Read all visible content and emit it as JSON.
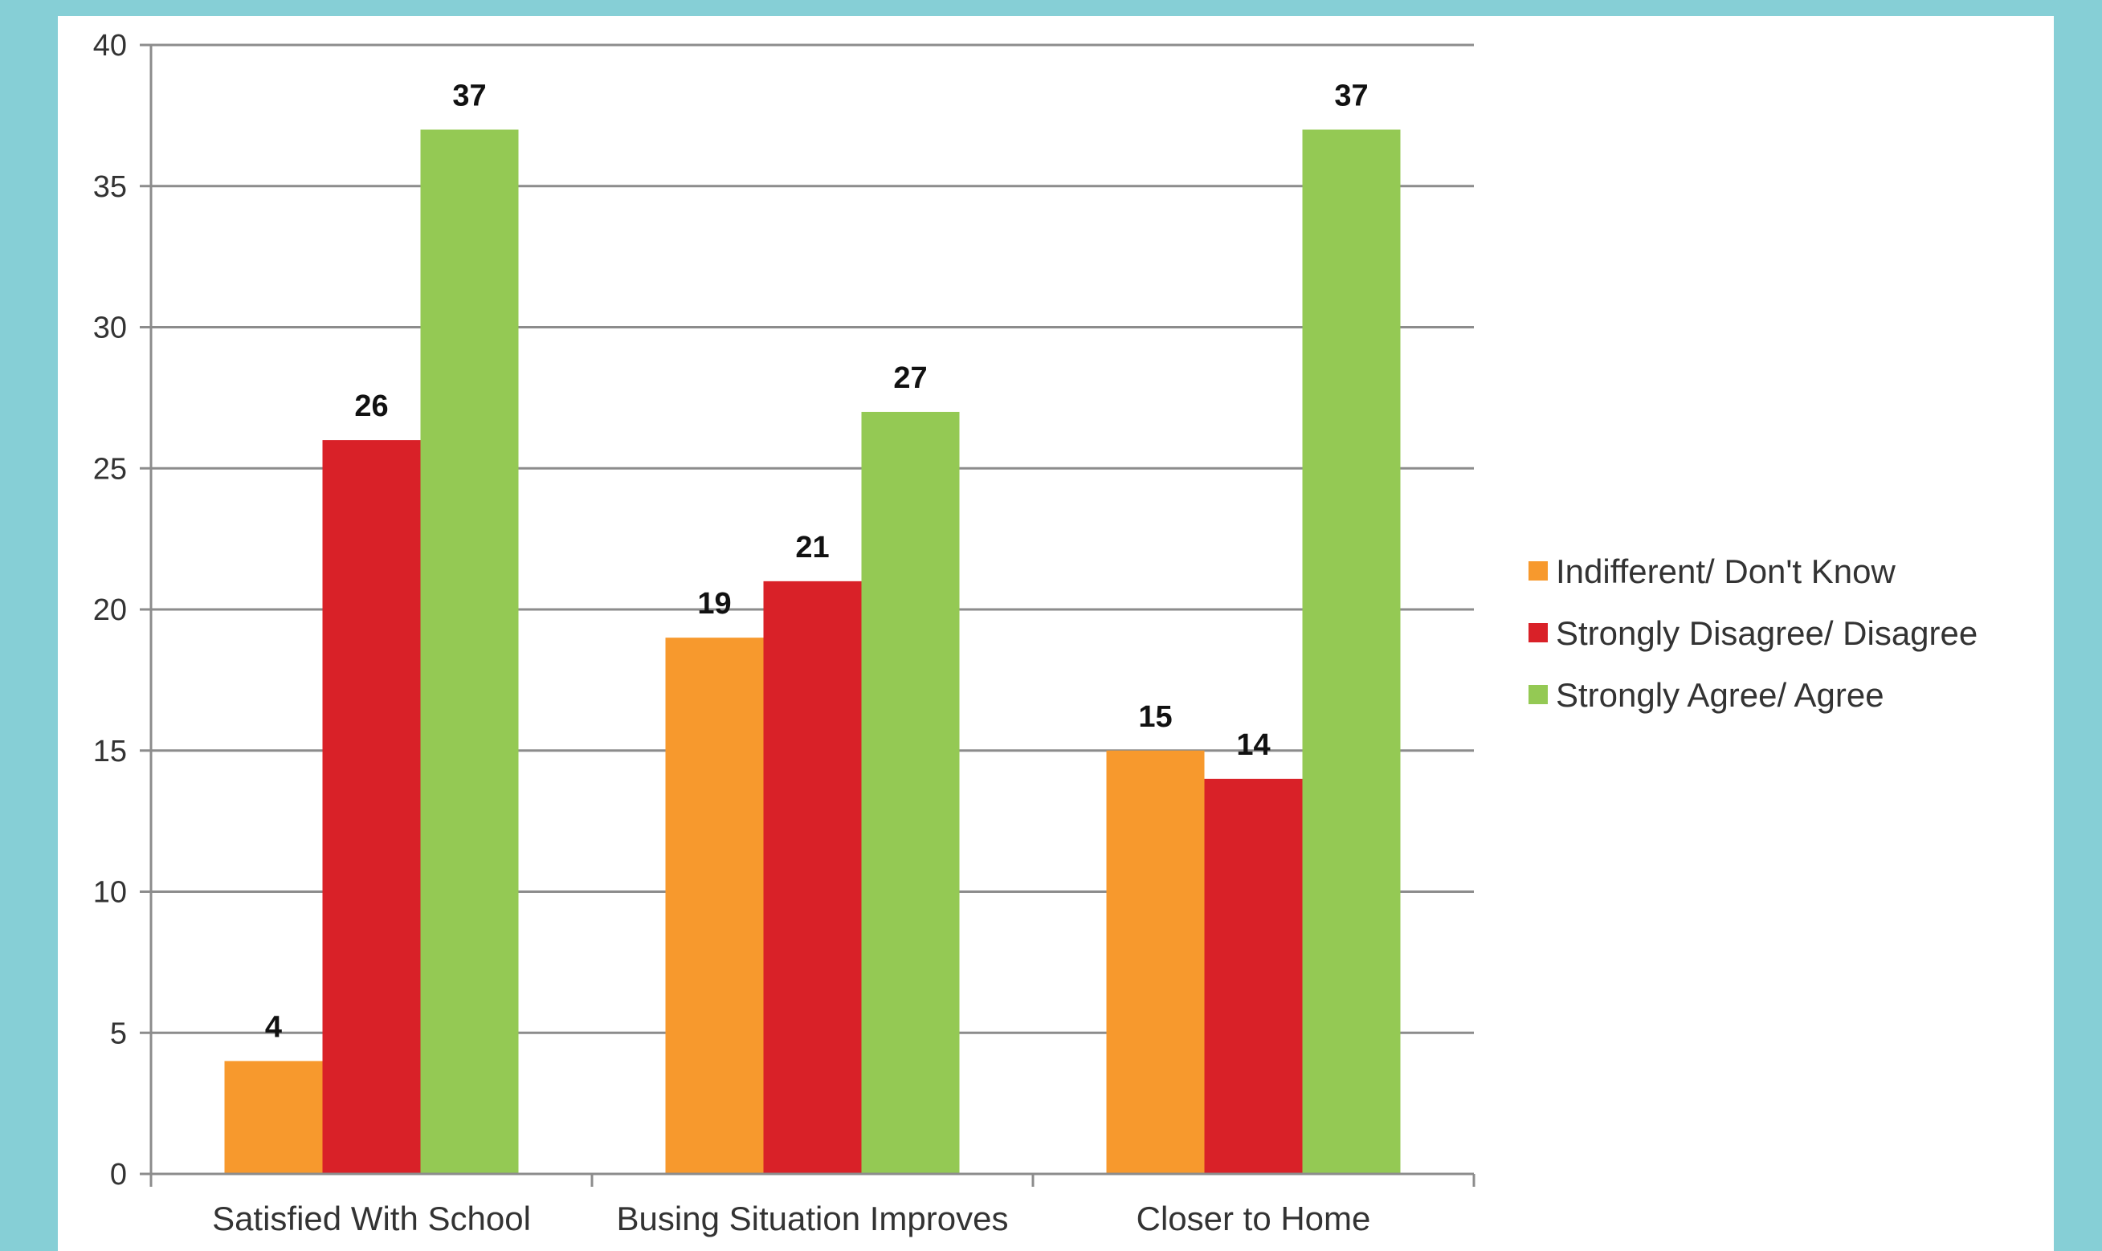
{
  "chart_data": {
    "type": "bar",
    "categories": [
      "Satisfied With School",
      "Busing Situation Improves",
      "Closer to Home"
    ],
    "series": [
      {
        "name": "Indifferent/ Don't Know",
        "values": [
          4,
          19,
          15
        ],
        "color": "#f7992d"
      },
      {
        "name": "Strongly Disagree/ Disagree",
        "values": [
          26,
          21,
          14
        ],
        "color": "#d92128"
      },
      {
        "name": "Strongly Agree/ Agree",
        "values": [
          37,
          27,
          37
        ],
        "color": "#94c954"
      }
    ],
    "y_ticks": [
      "0",
      "5",
      "10",
      "15",
      "20",
      "25",
      "30",
      "35",
      "40"
    ],
    "ylim": [
      0,
      40
    ],
    "grid": true,
    "legend_position": "right",
    "data_labels": true
  },
  "colors": {
    "background": "#86cfd6",
    "panel": "#ffffff",
    "gridline": "#8c8c8c"
  }
}
